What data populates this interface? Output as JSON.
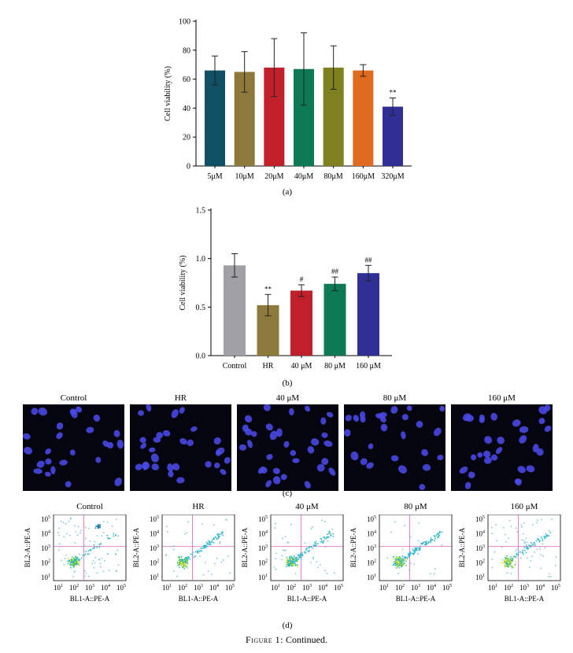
{
  "chart_data": [
    {
      "type": "bar",
      "panel": "(a)",
      "categories": [
        "5μM",
        "10μM",
        "20μM",
        "40μM",
        "80μM",
        "160μM",
        "320μM"
      ],
      "values": [
        66,
        65,
        68,
        67,
        68,
        66,
        41
      ],
      "errors": [
        10,
        14,
        20,
        25,
        15,
        4,
        6
      ],
      "colors": [
        "#0f5064",
        "#8d7a3a",
        "#c0202a",
        "#0e7a55",
        "#7f8020",
        "#e06a1e",
        "#2f2f96"
      ],
      "annotations": [
        "",
        "",
        "",
        "",
        "",
        "",
        "**"
      ],
      "ylabel": "Cell viability (%)",
      "yticks": [
        "0",
        "20",
        "40",
        "60",
        "80",
        "100"
      ],
      "ylim": [
        0,
        100
      ]
    },
    {
      "type": "bar",
      "panel": "(b)",
      "categories": [
        "Control",
        "HR",
        "40 μM",
        "80 μM",
        "160 μM"
      ],
      "values": [
        0.93,
        0.52,
        0.67,
        0.74,
        0.85
      ],
      "errors": [
        0.12,
        0.11,
        0.06,
        0.07,
        0.08
      ],
      "colors": [
        "#a0a0a6",
        "#8d7a3a",
        "#c0202a",
        "#0e7a55",
        "#2f2f96"
      ],
      "annotations": [
        "",
        "**",
        "#",
        "##",
        "##"
      ],
      "ylabel": "Cell viability (%)",
      "yticks": [
        "0.0",
        "0.5",
        "1.0",
        "1.5"
      ],
      "ylim": [
        0,
        1.5
      ]
    }
  ],
  "panel_c": {
    "label": "(c)",
    "titles": [
      "Control",
      "HR",
      "40 μM",
      "80 μM",
      "160 μM"
    ]
  },
  "panel_d": {
    "label": "(d)",
    "titles": [
      "Control",
      "HR",
      "40 μM",
      "80 μM",
      "160 μM"
    ],
    "ylabel": "BL2-A::PE-A",
    "xlabel": "BL1-A::PE-A",
    "ticks": [
      "10",
      "10",
      "10",
      "10",
      "10"
    ],
    "tick_exps": [
      "1",
      "2",
      "3",
      "4",
      "5"
    ]
  },
  "caption": {
    "prefix": "Figure 1:",
    "text": " Continued."
  }
}
